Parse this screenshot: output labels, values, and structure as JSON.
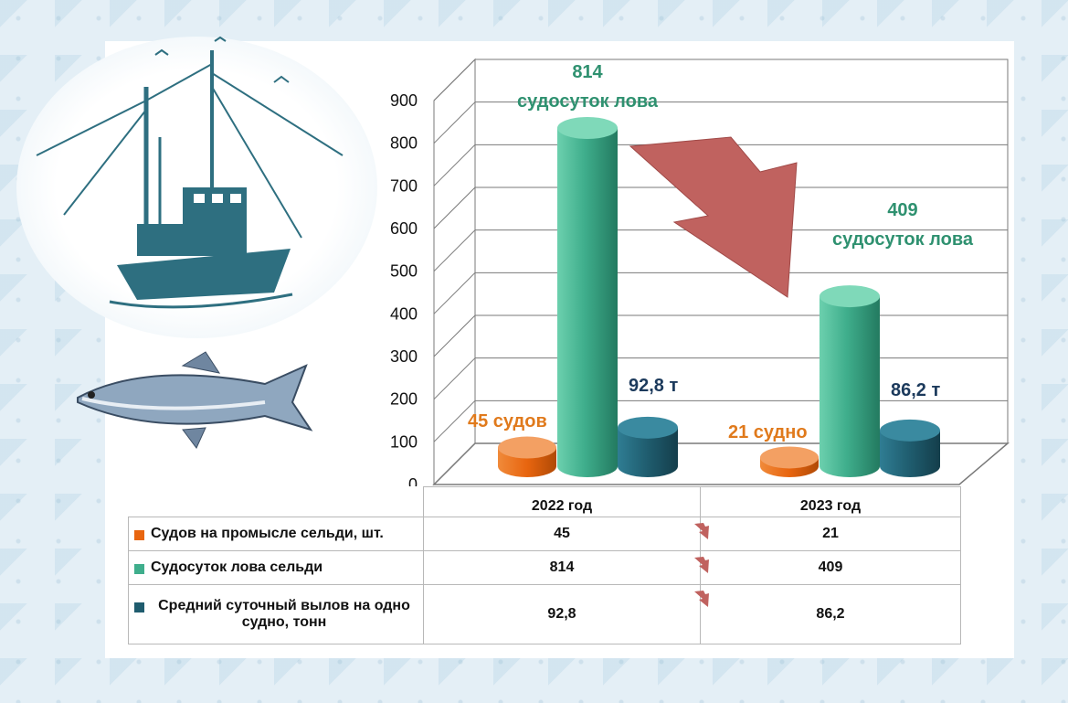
{
  "chart_data": {
    "type": "bar",
    "categories": [
      "2022 год",
      "2023 год"
    ],
    "series": [
      {
        "name": "Судов на промысле сельди, шт.",
        "values": [
          45,
          21
        ],
        "color": "#e8650f"
      },
      {
        "name": "Судосуток лова сельди",
        "values": [
          814,
          409
        ],
        "color": "#3fae8c"
      },
      {
        "name": "Средний суточный вылов на одно судно, тонн",
        "values": [
          92.8,
          86.2
        ],
        "color": "#1f5c6e"
      }
    ],
    "y_ticks": [
      "0",
      "100",
      "200",
      "300",
      "400",
      "500",
      "600",
      "700",
      "800",
      "900"
    ],
    "ylim": [
      0,
      900
    ],
    "grid": true,
    "legend": "table-below",
    "annotations": {
      "ships_2022": "45 судов",
      "ships_2023": "21 судно",
      "days_2022_value": "814",
      "days_2022_label": "судосуток лова",
      "days_2023_value": "409",
      "days_2023_label": "судосуток лова",
      "catch_2022": "92,8 т",
      "catch_2023": "86,2 т"
    },
    "table": {
      "rows": [
        {
          "label": "Судов на промысле сельди, шт.",
          "v2022": "45",
          "v2023": "21"
        },
        {
          "label": "Судосуток лова сельди",
          "v2022": "814",
          "v2023": "409"
        },
        {
          "label": "Средний суточный вылов на одно судно, тонн",
          "v2022": "92,8",
          "v2023": "86,2"
        }
      ]
    }
  },
  "icons": [
    "fishing-boat-icon",
    "herring-fish-icon",
    "decrease-arrow-icon"
  ],
  "colors": {
    "arrow": "#c0625f",
    "annotation_orange": "#e07a1c",
    "annotation_green": "#2f9170",
    "annotation_navy": "#1c3a5c"
  }
}
